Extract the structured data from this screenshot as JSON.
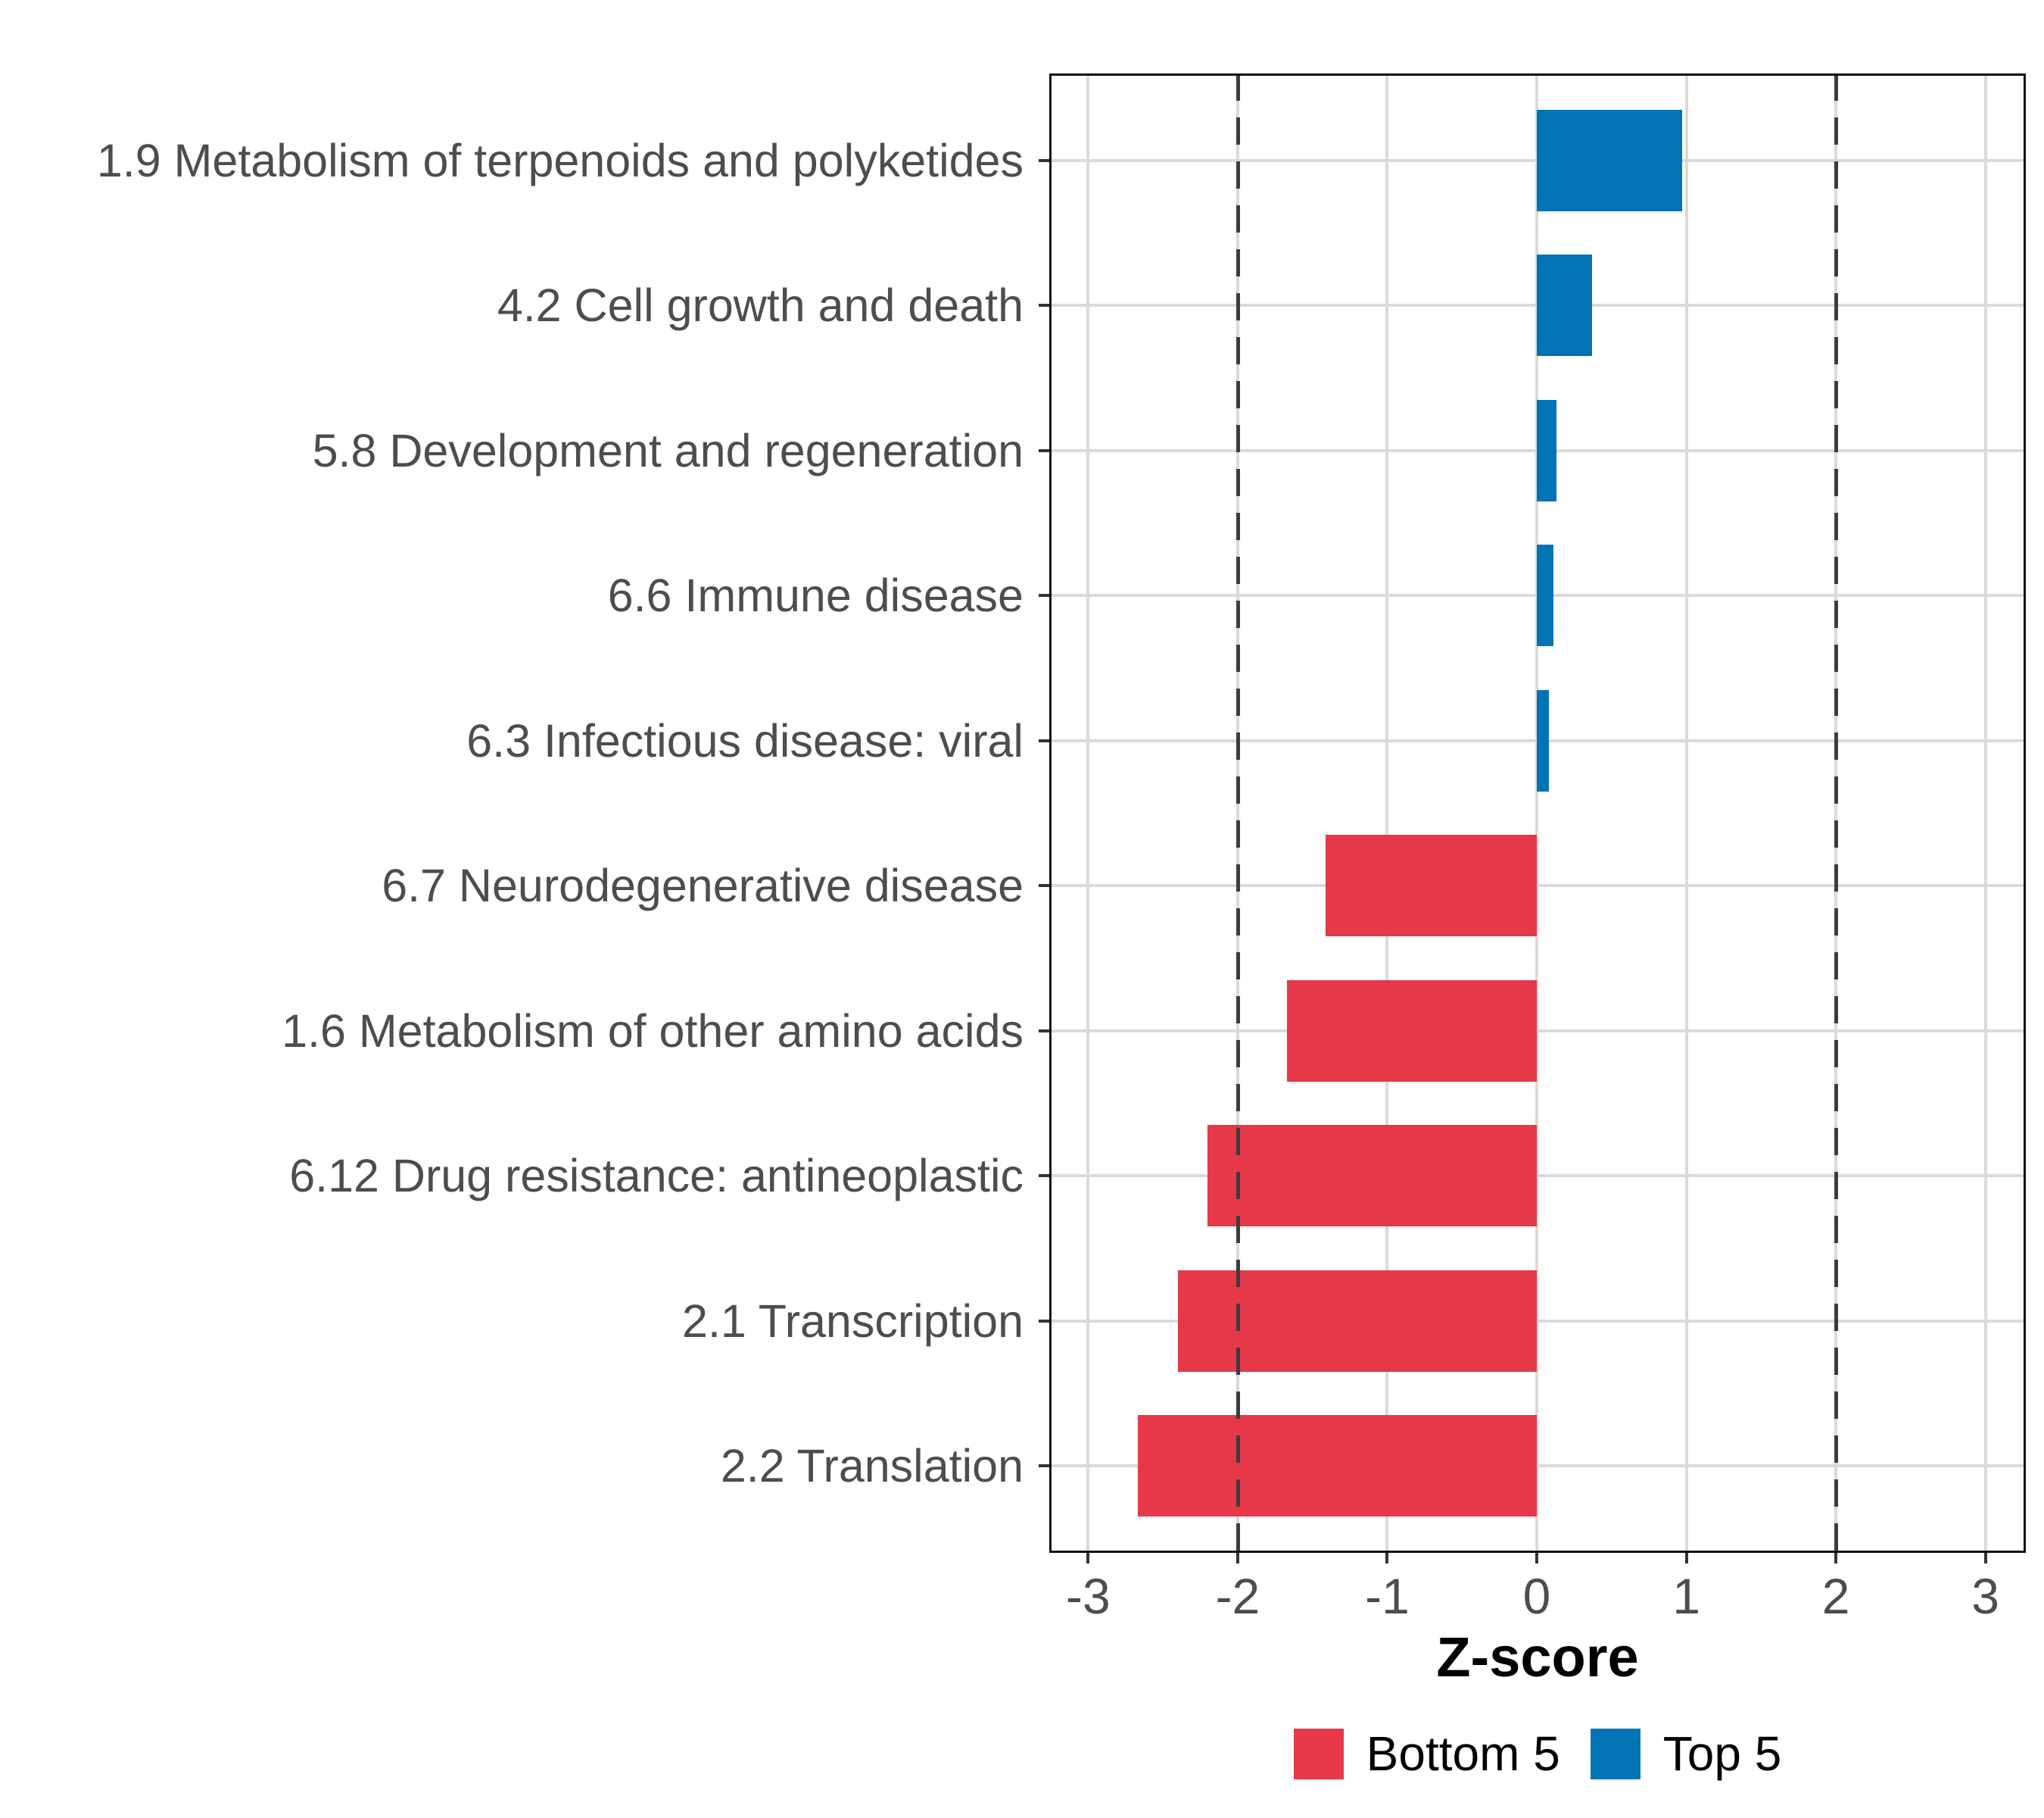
{
  "chart_data": {
    "type": "bar",
    "orientation": "horizontal",
    "title": "",
    "xlabel": "Z-score",
    "ylabel": "",
    "categories": [
      "1.9 Metabolism of terpenoids and polyketides",
      "4.2 Cell growth and death",
      "5.8 Development and regeneration",
      "6.6 Immune disease",
      "6.3 Infectious disease: viral",
      "6.7 Neurodegenerative disease",
      "1.6 Metabolism of other amino acids",
      "6.12 Drug resistance: antineoplastic",
      "2.1 Transcription",
      "2.2 Translation"
    ],
    "values": [
      0.97,
      0.37,
      0.13,
      0.11,
      0.08,
      -1.41,
      -1.67,
      -2.2,
      -2.4,
      -2.67
    ],
    "groups": [
      "Top 5",
      "Top 5",
      "Top 5",
      "Top 5",
      "Top 5",
      "Bottom 5",
      "Bottom 5",
      "Bottom 5",
      "Bottom 5",
      "Bottom 5"
    ],
    "x_ticks": [
      -3,
      -2,
      -1,
      0,
      1,
      2,
      3
    ],
    "x_tick_labels": [
      "-3",
      "-2",
      "-1",
      "0",
      "1",
      "2",
      "3"
    ],
    "xlim": [
      -3.26,
      3.27
    ],
    "reference_lines": [
      -2,
      2
    ],
    "bar_width_fraction": 0.7,
    "grid": true,
    "legend_position": "bottom",
    "legend": [
      {
        "label": "Bottom 5",
        "color": "#E63849"
      },
      {
        "label": "Top 5",
        "color": "#0274B6"
      }
    ],
    "colors": {
      "positive": "#0274B6",
      "negative": "#E63849",
      "gridline": "#DADADA",
      "reference_line": "#3D3D3D",
      "axis_text": "#4D4D4D",
      "axis_title": "#000000",
      "panel_border": "#111111",
      "tick": "#333333",
      "background": "#FFFFFF"
    }
  }
}
